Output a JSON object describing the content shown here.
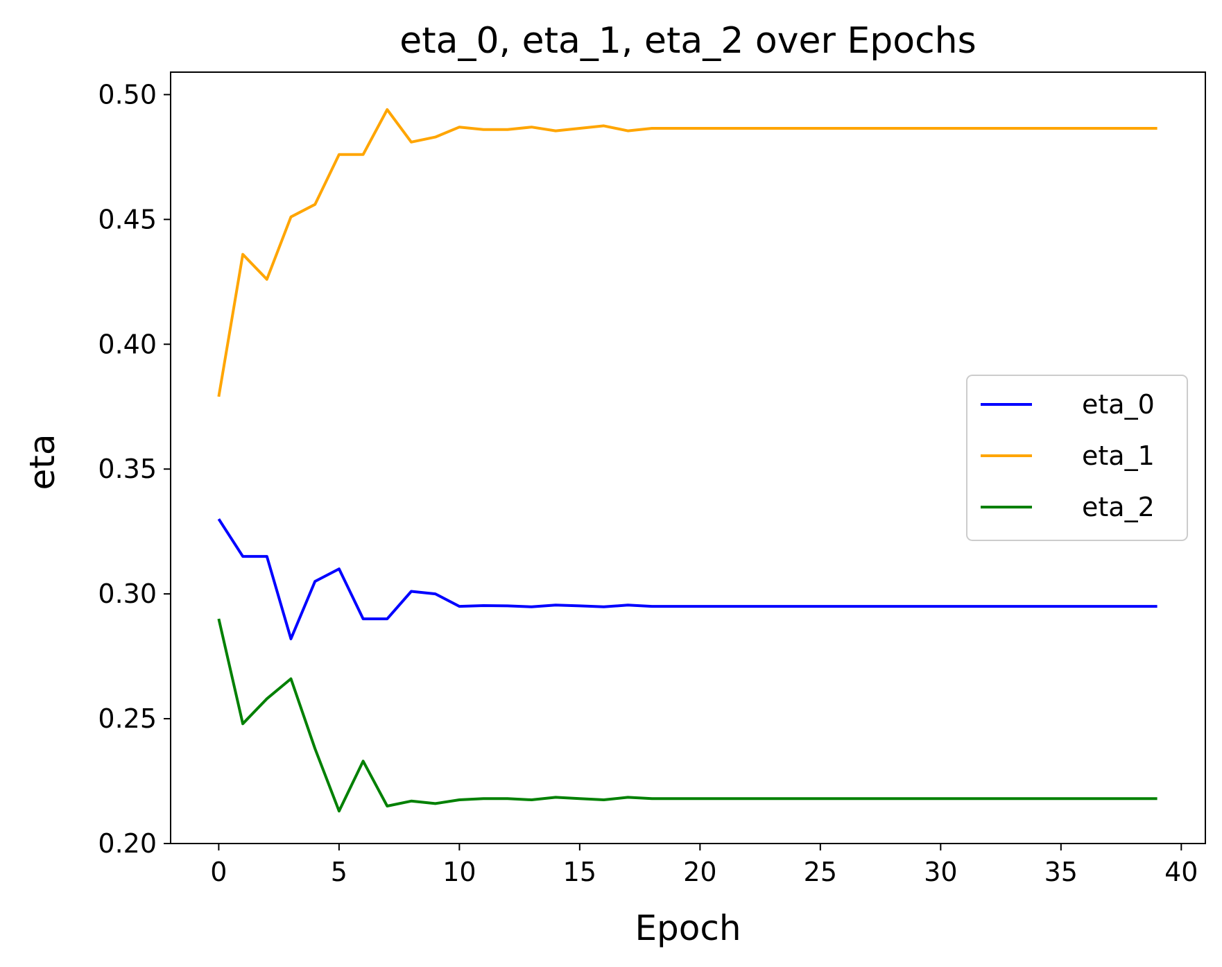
{
  "chart_data": {
    "type": "line",
    "title": "eta_0, eta_1, eta_2 over Epochs",
    "xlabel": "Epoch",
    "ylabel": "eta",
    "xlim": [
      -2,
      41
    ],
    "ylim": [
      0.2,
      0.509
    ],
    "xticks": [
      0,
      5,
      10,
      15,
      20,
      25,
      30,
      35,
      40
    ],
    "yticks": [
      0.2,
      0.25,
      0.3,
      0.35,
      0.4,
      0.45,
      0.5
    ],
    "xtick_labels": [
      "0",
      "5",
      "10",
      "15",
      "20",
      "25",
      "30",
      "35",
      "40"
    ],
    "ytick_labels": [
      "0.20",
      "0.25",
      "0.30",
      "0.35",
      "0.40",
      "0.45",
      "0.50"
    ],
    "grid": false,
    "legend_position": "center-right",
    "x": [
      0,
      1,
      2,
      3,
      4,
      5,
      6,
      7,
      8,
      9,
      10,
      11,
      12,
      13,
      14,
      15,
      16,
      17,
      18,
      19,
      20,
      21,
      22,
      23,
      24,
      25,
      26,
      27,
      28,
      29,
      30,
      31,
      32,
      33,
      34,
      35,
      36,
      37,
      38,
      39
    ],
    "series": [
      {
        "name": "eta_0",
        "color": "#0000ff",
        "values": [
          0.33,
          0.315,
          0.315,
          0.282,
          0.305,
          0.31,
          0.29,
          0.29,
          0.301,
          0.3,
          0.295,
          0.2953,
          0.2952,
          0.2948,
          0.2955,
          0.2952,
          0.2948,
          0.2955,
          0.295,
          0.295,
          0.295,
          0.295,
          0.295,
          0.295,
          0.295,
          0.295,
          0.295,
          0.295,
          0.295,
          0.295,
          0.295,
          0.295,
          0.295,
          0.295,
          0.295,
          0.295,
          0.295,
          0.295,
          0.295,
          0.295
        ]
      },
      {
        "name": "eta_1",
        "color": "#ffa500",
        "values": [
          0.379,
          0.436,
          0.426,
          0.451,
          0.456,
          0.476,
          0.476,
          0.494,
          0.481,
          0.483,
          0.487,
          0.486,
          0.486,
          0.487,
          0.4855,
          0.4865,
          0.4875,
          0.4855,
          0.4865,
          0.4865,
          0.4865,
          0.4865,
          0.4865,
          0.4865,
          0.4865,
          0.4865,
          0.4865,
          0.4865,
          0.4865,
          0.4865,
          0.4865,
          0.4865,
          0.4865,
          0.4865,
          0.4865,
          0.4865,
          0.4865,
          0.4865,
          0.4865,
          0.4865
        ]
      },
      {
        "name": "eta_2",
        "color": "#008000",
        "values": [
          0.29,
          0.248,
          0.258,
          0.266,
          0.238,
          0.213,
          0.233,
          0.215,
          0.217,
          0.216,
          0.2175,
          0.218,
          0.218,
          0.2175,
          0.2185,
          0.218,
          0.2175,
          0.2185,
          0.218,
          0.218,
          0.218,
          0.218,
          0.218,
          0.218,
          0.218,
          0.218,
          0.218,
          0.218,
          0.218,
          0.218,
          0.218,
          0.218,
          0.218,
          0.218,
          0.218,
          0.218,
          0.218,
          0.218,
          0.218,
          0.218
        ]
      }
    ]
  }
}
